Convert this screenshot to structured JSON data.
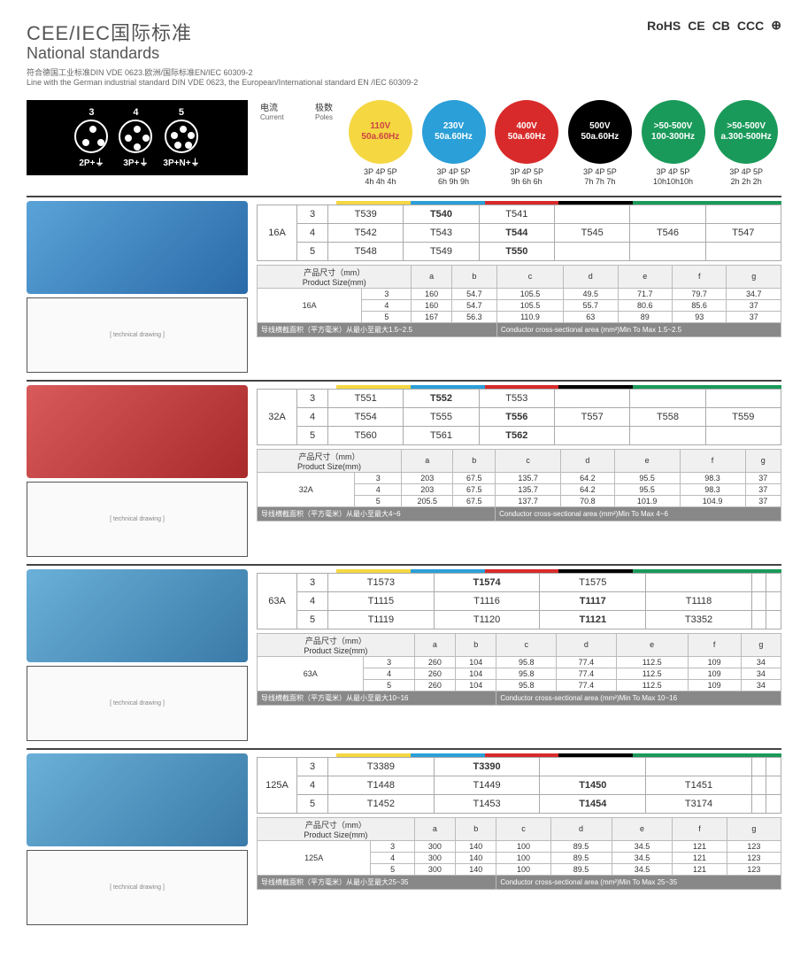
{
  "header": {
    "cn_title": "CEE/IEC国际标准",
    "en_title": "National standards",
    "sub_cn": "符合德国工业标准DIN VDE 0623.欧洲/国际标准EN/IEC 60309-2",
    "sub_en": "Line with the German industrial standard DIN VDE 0623, the European/International standard EN /IEC 60309-2",
    "certs": [
      "RoHS",
      "CE",
      "CB",
      "CCC",
      "⊕"
    ]
  },
  "pole_diagram": [
    {
      "num": "3",
      "label": "2P+⏚"
    },
    {
      "num": "4",
      "label": "3P+⏚"
    },
    {
      "num": "5",
      "label": "3P+N+⏚"
    }
  ],
  "col_labels": {
    "current_cn": "电流",
    "current_en": "Current",
    "poles_cn": "极数",
    "poles_en": "Poles"
  },
  "voltages": [
    {
      "v": "110V",
      "hz": "50a.60Hz",
      "bg": "#f5d742",
      "fg": "#c44",
      "poles": "3P 4P 5P",
      "clock": "4h 4h 4h"
    },
    {
      "v": "230V",
      "hz": "50a.60Hz",
      "bg": "#2a9fd8",
      "fg": "#fff",
      "poles": "3P 4P 5P",
      "clock": "6h 9h 9h"
    },
    {
      "v": "400V",
      "hz": "50a.60Hz",
      "bg": "#d82a2a",
      "fg": "#fff",
      "poles": "3P 4P 5P",
      "clock": "9h 6h 6h"
    },
    {
      "v": "500V",
      "hz": "50a.60Hz",
      "bg": "#000",
      "fg": "#fff",
      "poles": "3P 4P 5P",
      "clock": "7h 7h 7h"
    },
    {
      "v": ">50-500V",
      "hz": "100-300Hz",
      "bg": "#1a9a5a",
      "fg": "#fff",
      "poles": "3P 4P 5P",
      "clock": "10h10h10h"
    },
    {
      "v": ">50-500V",
      "hz": "a.300-500Hz",
      "bg": "#1a9a5a",
      "fg": "#fff",
      "poles": "3P 4P 5P",
      "clock": "2h 2h 2h"
    }
  ],
  "strip_colors": [
    "#f5d742",
    "#2a9fd8",
    "#d82a2a",
    "#000",
    "#1a9a5a",
    "#1a9a5a"
  ],
  "size_cols": [
    "a",
    "b",
    "c",
    "d",
    "e",
    "f",
    "g"
  ],
  "size_label_cn": "产品尺寸（mm）",
  "size_label_en": "Product Size(mm)",
  "sections": [
    {
      "amp": "16A",
      "photo": "photo",
      "rows": [
        {
          "p": "3",
          "cells": [
            "T539",
            "T540",
            "T541",
            "",
            "",
            ""
          ],
          "bold": [
            1
          ]
        },
        {
          "p": "4",
          "cells": [
            "T542",
            "T543",
            "T544",
            "T545",
            "T546",
            "T547"
          ],
          "bold": [
            2
          ]
        },
        {
          "p": "5",
          "cells": [
            "T548",
            "T549",
            "T550",
            "",
            "",
            ""
          ],
          "bold": [
            2
          ]
        }
      ],
      "sizes": [
        {
          "p": "3",
          "v": [
            "160",
            "54.7",
            "105.5",
            "49.5",
            "71.7",
            "79.7",
            "34.7"
          ]
        },
        {
          "p": "4",
          "v": [
            "160",
            "54.7",
            "105.5",
            "55.7",
            "80.6",
            "85.6",
            "37"
          ]
        },
        {
          "p": "5",
          "v": [
            "167",
            "56.3",
            "110.9",
            "63",
            "89",
            "93",
            "37"
          ]
        }
      ],
      "cond_cn": "导线横截面积（平方毫米）从最小至最大1.5~2.5",
      "cond_en": "Conductor cross-sectional area (mm²)Min To Max 1.5~2.5"
    },
    {
      "amp": "32A",
      "photo": "photo-red",
      "rows": [
        {
          "p": "3",
          "cells": [
            "T551",
            "T552",
            "T553",
            "",
            "",
            ""
          ],
          "bold": [
            1
          ]
        },
        {
          "p": "4",
          "cells": [
            "T554",
            "T555",
            "T556",
            "T557",
            "T558",
            "T559"
          ],
          "bold": [
            2
          ]
        },
        {
          "p": "5",
          "cells": [
            "T560",
            "T561",
            "T562",
            "",
            "",
            ""
          ],
          "bold": [
            2
          ]
        }
      ],
      "sizes": [
        {
          "p": "3",
          "v": [
            "203",
            "67.5",
            "135.7",
            "64.2",
            "95.5",
            "98.3",
            "37"
          ]
        },
        {
          "p": "4",
          "v": [
            "203",
            "67.5",
            "135.7",
            "64.2",
            "95.5",
            "98.3",
            "37"
          ]
        },
        {
          "p": "5",
          "v": [
            "205.5",
            "67.5",
            "137.7",
            "70.8",
            "101.9",
            "104.9",
            "37"
          ]
        }
      ],
      "cond_cn": "导线横截面积（平方毫米）从最小至最大4~6",
      "cond_en": "Conductor cross-sectional area (mm²)Min To Max 4~6"
    },
    {
      "amp": "63A",
      "photo": "photo-blue2",
      "rows": [
        {
          "p": "3",
          "cells": [
            "T1573",
            "T1574",
            "T1575",
            "",
            "",
            ""
          ],
          "bold": [
            1
          ]
        },
        {
          "p": "4",
          "cells": [
            "T1115",
            "T1116",
            "T1117",
            "T1118",
            "",
            ""
          ],
          "bold": [
            2
          ]
        },
        {
          "p": "5",
          "cells": [
            "T1119",
            "T1120",
            "T1121",
            "T3352",
            "",
            ""
          ],
          "bold": [
            2
          ]
        }
      ],
      "sizes": [
        {
          "p": "3",
          "v": [
            "260",
            "104",
            "95.8",
            "77.4",
            "112.5",
            "109",
            "34"
          ]
        },
        {
          "p": "4",
          "v": [
            "260",
            "104",
            "95.8",
            "77.4",
            "112.5",
            "109",
            "34"
          ]
        },
        {
          "p": "5",
          "v": [
            "260",
            "104",
            "95.8",
            "77.4",
            "112.5",
            "109",
            "34"
          ]
        }
      ],
      "cond_cn": "导线横截面积（平方毫米）从最小至最大10~16",
      "cond_en": "Conductor cross-sectional area (mm²)Min To Max 10~16"
    },
    {
      "amp": "125A",
      "photo": "photo-blue2",
      "rows": [
        {
          "p": "3",
          "cells": [
            "T3389",
            "T3390",
            "",
            "",
            "",
            ""
          ],
          "bold": [
            1
          ]
        },
        {
          "p": "4",
          "cells": [
            "T1448",
            "T1449",
            "T1450",
            "T1451",
            "",
            ""
          ],
          "bold": [
            2
          ]
        },
        {
          "p": "5",
          "cells": [
            "T1452",
            "T1453",
            "T1454",
            "T3174",
            "",
            ""
          ],
          "bold": [
            2
          ]
        }
      ],
      "sizes": [
        {
          "p": "3",
          "v": [
            "300",
            "140",
            "100",
            "89.5",
            "34.5",
            "121",
            "123"
          ]
        },
        {
          "p": "4",
          "v": [
            "300",
            "140",
            "100",
            "89.5",
            "34.5",
            "121",
            "123"
          ]
        },
        {
          "p": "5",
          "v": [
            "300",
            "140",
            "100",
            "89.5",
            "34.5",
            "121",
            "123"
          ]
        }
      ],
      "cond_cn": "导线横截面积（平方毫米）从最小至最大25~35",
      "cond_en": "Conductor cross-sectional area (mm²)Min To Max 25~35"
    }
  ]
}
